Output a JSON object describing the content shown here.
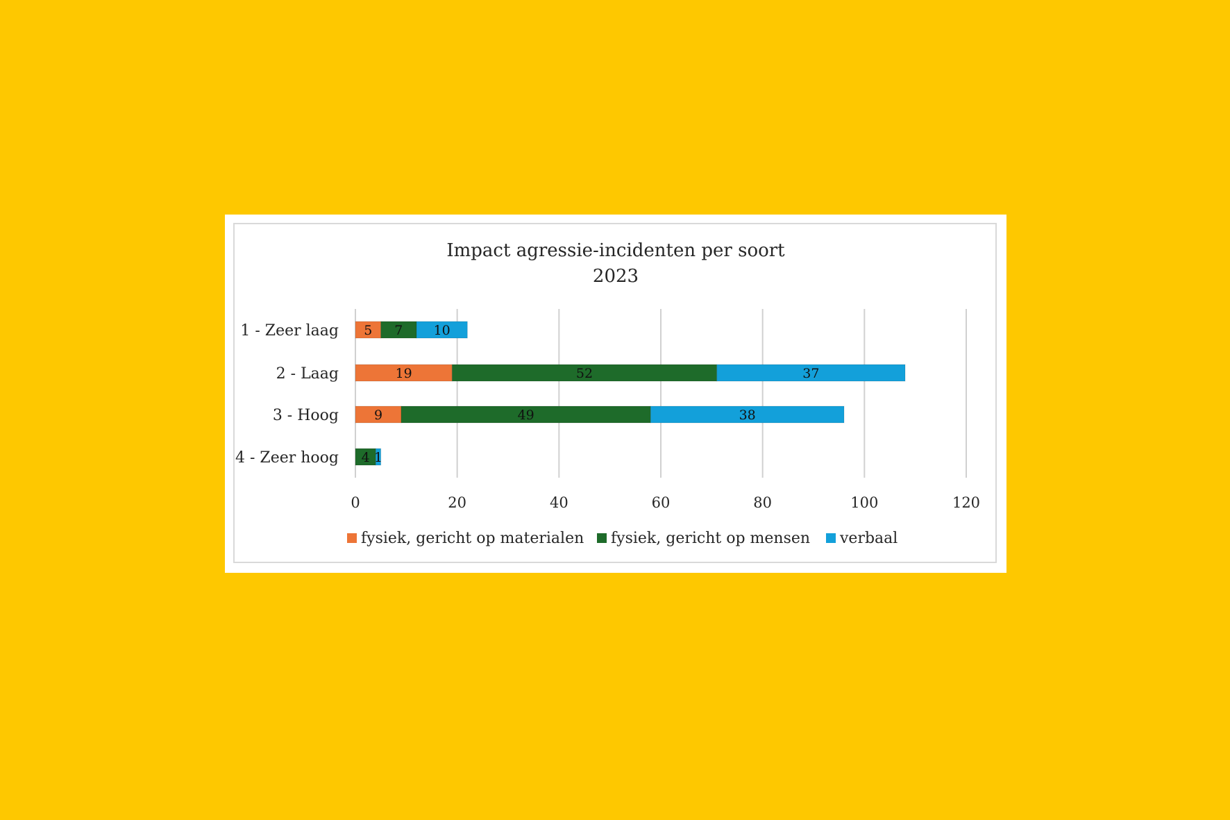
{
  "chart_data": {
    "type": "bar",
    "orientation": "horizontal",
    "stacked": true,
    "title": "Impact agressie-incidenten per soort",
    "subtitle": "2023",
    "categories": [
      "1 - Zeer laag",
      "2 - Laag",
      "3 - Hoog",
      "4 - Zeer hoog"
    ],
    "series": [
      {
        "name": "fysiek, gericht op materialen",
        "color": "#ED7537",
        "values": [
          5,
          19,
          9,
          0
        ],
        "labels": [
          "5",
          "19",
          "9",
          ""
        ]
      },
      {
        "name": "fysiek, gericht op mensen",
        "color": "#1E6B2A",
        "values": [
          7,
          52,
          49,
          4
        ],
        "labels": [
          "7",
          "52",
          "49",
          "4"
        ]
      },
      {
        "name": "verbaal",
        "color": "#13A0DA",
        "values": [
          10,
          37,
          38,
          1
        ],
        "labels": [
          "10",
          "37",
          "38",
          "1"
        ]
      }
    ],
    "xlim": [
      0,
      120
    ],
    "xticks": [
      0,
      20,
      40,
      60,
      80,
      100,
      120
    ],
    "grid": true,
    "legend_position": "bottom",
    "data_labels": true
  },
  "colors": {
    "page_background": "#FEC800",
    "card_background": "#FFFFFF"
  }
}
